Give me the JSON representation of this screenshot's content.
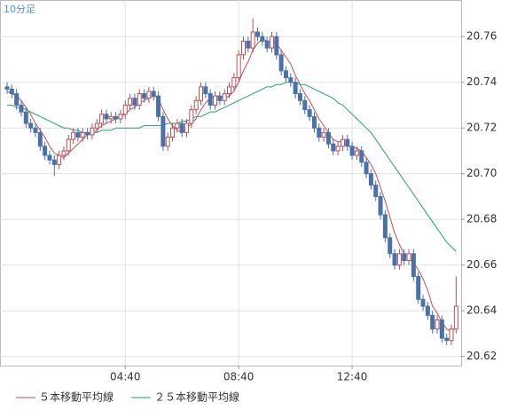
{
  "chart_data": {
    "type": "candlestick",
    "title": "10分足",
    "categories": [
      null,
      null,
      null,
      null,
      null,
      null,
      null,
      null,
      null,
      null,
      null,
      null,
      null,
      null,
      null,
      null,
      null,
      null,
      null,
      null,
      null,
      null,
      null,
      null,
      null,
      "04:40",
      null,
      null,
      null,
      null,
      null,
      null,
      null,
      null,
      null,
      null,
      null,
      null,
      null,
      null,
      null,
      null,
      null,
      null,
      null,
      null,
      null,
      null,
      null,
      "08:40",
      null,
      null,
      null,
      null,
      null,
      null,
      null,
      null,
      null,
      null,
      null,
      null,
      null,
      null,
      null,
      null,
      null,
      null,
      null,
      null,
      null,
      null,
      null,
      "12:40",
      null,
      null,
      null,
      null,
      null,
      null,
      null,
      null,
      null,
      null,
      null,
      null,
      null,
      null,
      null,
      null,
      null,
      null,
      null,
      null,
      null,
      null
    ],
    "open": [
      20.738,
      20.737,
      20.735,
      20.73,
      20.727,
      20.722,
      20.72,
      20.718,
      20.712,
      20.708,
      20.706,
      20.704,
      20.708,
      20.71,
      20.715,
      20.718,
      20.716,
      20.718,
      20.717,
      20.72,
      20.722,
      20.726,
      20.724,
      20.725,
      20.724,
      20.726,
      20.73,
      20.733,
      20.73,
      20.735,
      20.733,
      20.736,
      20.734,
      20.725,
      20.712,
      20.716,
      20.72,
      20.722,
      20.718,
      20.722,
      20.728,
      20.732,
      20.738,
      20.735,
      20.73,
      20.734,
      20.732,
      20.735,
      20.738,
      20.742,
      20.752,
      20.758,
      20.755,
      20.762,
      20.76,
      20.758,
      20.755,
      20.76,
      20.752,
      20.745,
      20.742,
      20.74,
      20.735,
      20.732,
      20.728,
      20.725,
      20.72,
      20.716,
      20.718,
      20.713,
      20.71,
      20.712,
      20.715,
      20.712,
      20.708,
      20.71,
      20.705,
      20.7,
      20.695,
      20.69,
      20.682,
      20.672,
      20.665,
      20.66,
      20.665,
      20.662,
      20.665,
      20.655,
      20.645,
      20.642,
      20.638,
      20.632,
      20.636,
      20.628,
      20.627,
      20.632
    ],
    "high": [
      20.74,
      20.739,
      20.737,
      20.732,
      20.729,
      20.724,
      20.722,
      20.72,
      20.714,
      20.71,
      20.708,
      20.71,
      20.712,
      20.717,
      20.72,
      20.72,
      20.72,
      20.72,
      20.722,
      20.724,
      20.728,
      20.728,
      20.727,
      20.727,
      20.728,
      20.732,
      20.735,
      20.735,
      20.737,
      20.737,
      20.738,
      20.738,
      20.736,
      20.727,
      20.718,
      20.722,
      20.724,
      20.724,
      20.724,
      20.73,
      20.734,
      20.74,
      20.74,
      20.737,
      20.736,
      20.736,
      20.737,
      20.74,
      20.744,
      20.754,
      20.76,
      20.76,
      20.768,
      20.764,
      20.762,
      20.76,
      20.762,
      20.762,
      20.754,
      20.747,
      20.744,
      20.742,
      20.737,
      20.734,
      20.73,
      20.727,
      20.722,
      20.72,
      20.72,
      20.715,
      20.714,
      20.717,
      20.717,
      20.714,
      20.712,
      20.712,
      20.707,
      20.702,
      20.697,
      20.692,
      20.684,
      20.674,
      20.667,
      20.667,
      20.667,
      20.667,
      20.667,
      20.657,
      20.647,
      20.644,
      20.64,
      20.638,
      20.638,
      20.63,
      20.634,
      20.655
    ],
    "low": [
      20.735,
      20.733,
      20.728,
      20.725,
      20.72,
      20.718,
      20.716,
      20.71,
      20.706,
      20.704,
      20.699,
      20.702,
      20.706,
      20.708,
      20.713,
      20.714,
      20.714,
      20.715,
      20.715,
      20.718,
      20.72,
      20.722,
      20.722,
      20.722,
      20.722,
      20.724,
      20.728,
      20.728,
      20.728,
      20.731,
      20.731,
      20.732,
      20.723,
      20.71,
      20.71,
      20.714,
      20.718,
      20.716,
      20.716,
      20.72,
      20.726,
      20.73,
      20.733,
      20.728,
      20.728,
      20.73,
      20.73,
      20.733,
      20.736,
      20.74,
      20.75,
      20.753,
      20.753,
      20.758,
      20.756,
      20.753,
      20.753,
      20.75,
      20.743,
      20.74,
      20.738,
      20.733,
      20.73,
      20.726,
      20.723,
      20.718,
      20.714,
      20.714,
      20.711,
      20.708,
      20.708,
      20.71,
      20.71,
      20.706,
      20.706,
      20.703,
      20.698,
      20.693,
      20.688,
      20.68,
      20.67,
      20.663,
      20.658,
      20.658,
      20.66,
      20.66,
      20.653,
      20.643,
      20.64,
      20.636,
      20.63,
      20.63,
      20.626,
      20.625,
      20.625,
      20.63
    ],
    "close": [
      20.737,
      20.735,
      20.73,
      20.727,
      20.722,
      20.72,
      20.718,
      20.712,
      20.708,
      20.706,
      20.704,
      20.708,
      20.71,
      20.715,
      20.718,
      20.716,
      20.718,
      20.717,
      20.72,
      20.722,
      20.726,
      20.724,
      20.725,
      20.724,
      20.726,
      20.73,
      20.733,
      20.73,
      20.735,
      20.733,
      20.736,
      20.734,
      20.725,
      20.712,
      20.716,
      20.72,
      20.722,
      20.718,
      20.722,
      20.728,
      20.732,
      20.738,
      20.735,
      20.73,
      20.734,
      20.732,
      20.735,
      20.738,
      20.742,
      20.752,
      20.758,
      20.755,
      20.762,
      20.76,
      20.758,
      20.755,
      20.76,
      20.752,
      20.745,
      20.742,
      20.74,
      20.735,
      20.732,
      20.728,
      20.725,
      20.72,
      20.716,
      20.718,
      20.713,
      20.71,
      20.712,
      20.715,
      20.712,
      20.708,
      20.71,
      20.705,
      20.7,
      20.695,
      20.69,
      20.682,
      20.672,
      20.665,
      20.66,
      20.665,
      20.662,
      20.665,
      20.655,
      20.645,
      20.642,
      20.638,
      20.632,
      20.636,
      20.628,
      20.627,
      20.632,
      20.642
    ],
    "up_color": "#b5525a",
    "down_color": "#4a72a8",
    "series": [
      {
        "name": "５本移動平均線",
        "color": "#c0505a",
        "values": [
          20.736,
          20.735,
          20.734,
          20.732,
          20.729,
          20.726,
          20.722,
          20.719,
          20.716,
          20.712,
          20.709,
          20.708,
          20.707,
          20.709,
          20.711,
          20.713,
          20.715,
          20.717,
          20.718,
          20.719,
          20.721,
          20.722,
          20.723,
          20.724,
          20.725,
          20.726,
          20.728,
          20.729,
          20.731,
          20.732,
          20.733,
          20.734,
          20.733,
          20.728,
          20.724,
          20.721,
          20.719,
          20.718,
          20.72,
          20.722,
          20.724,
          20.728,
          20.731,
          20.733,
          20.734,
          20.734,
          20.733,
          20.734,
          20.736,
          20.74,
          20.745,
          20.749,
          20.754,
          20.757,
          20.759,
          20.758,
          20.758,
          20.757,
          20.754,
          20.751,
          20.748,
          20.743,
          20.739,
          20.735,
          20.732,
          20.728,
          20.724,
          20.721,
          20.718,
          20.715,
          20.714,
          20.714,
          20.712,
          20.712,
          20.711,
          20.71,
          20.707,
          20.704,
          20.7,
          20.694,
          20.688,
          20.681,
          20.674,
          20.669,
          20.665,
          20.663,
          20.661,
          20.658,
          20.654,
          20.649,
          20.642,
          20.639,
          20.635,
          20.632,
          20.631,
          20.633
        ]
      },
      {
        "name": "２５本移動平均線",
        "color": "#2a9e78",
        "values": [
          20.73,
          20.73,
          20.729,
          20.729,
          20.728,
          20.727,
          20.726,
          20.725,
          20.724,
          20.723,
          20.722,
          20.721,
          20.72,
          20.72,
          20.719,
          20.719,
          20.718,
          20.718,
          20.718,
          20.718,
          20.719,
          20.719,
          20.719,
          20.72,
          20.72,
          20.72,
          20.72,
          20.72,
          20.72,
          20.721,
          20.721,
          20.721,
          20.721,
          20.721,
          20.722,
          20.722,
          20.722,
          20.723,
          20.723,
          20.724,
          20.725,
          20.725,
          20.726,
          20.727,
          20.727,
          20.728,
          20.729,
          20.73,
          20.731,
          20.732,
          20.733,
          20.734,
          20.735,
          20.736,
          20.737,
          20.738,
          20.738,
          20.739,
          20.739,
          20.74,
          20.74,
          20.74,
          20.739,
          20.739,
          20.738,
          20.737,
          20.736,
          20.735,
          20.734,
          20.733,
          20.731,
          20.73,
          20.728,
          20.726,
          20.724,
          20.722,
          20.72,
          20.718,
          20.715,
          20.712,
          20.709,
          20.706,
          20.703,
          20.7,
          20.697,
          20.694,
          20.691,
          20.688,
          20.685,
          20.682,
          20.679,
          20.676,
          20.673,
          20.67,
          20.668,
          20.666
        ]
      }
    ],
    "ylim": [
      20.616,
      20.776
    ],
    "yticks": [
      20.62,
      20.64,
      20.66,
      20.68,
      {
        "value": 20.7,
        "label": "20.70"
      },
      20.72,
      20.74,
      20.76
    ],
    "grid": true
  }
}
